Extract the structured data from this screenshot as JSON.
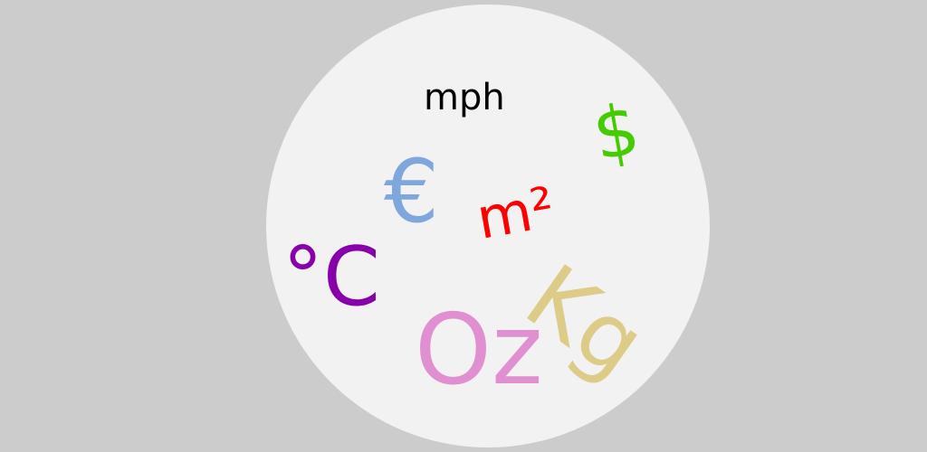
{
  "units": {
    "mph": {
      "label": "mph",
      "color": "#000000"
    },
    "dollar": {
      "label": "$",
      "color": "#44cc00"
    },
    "euro": {
      "label": "€",
      "color": "#7fa6dd"
    },
    "m2": {
      "label": "m²",
      "color": "#ff0000"
    },
    "celsius": {
      "label": "°C",
      "color": "#8800aa"
    },
    "oz": {
      "label": "Oz",
      "color": "#e08fd0"
    },
    "kg": {
      "label": "Kg",
      "color": "#ddcc88"
    }
  }
}
